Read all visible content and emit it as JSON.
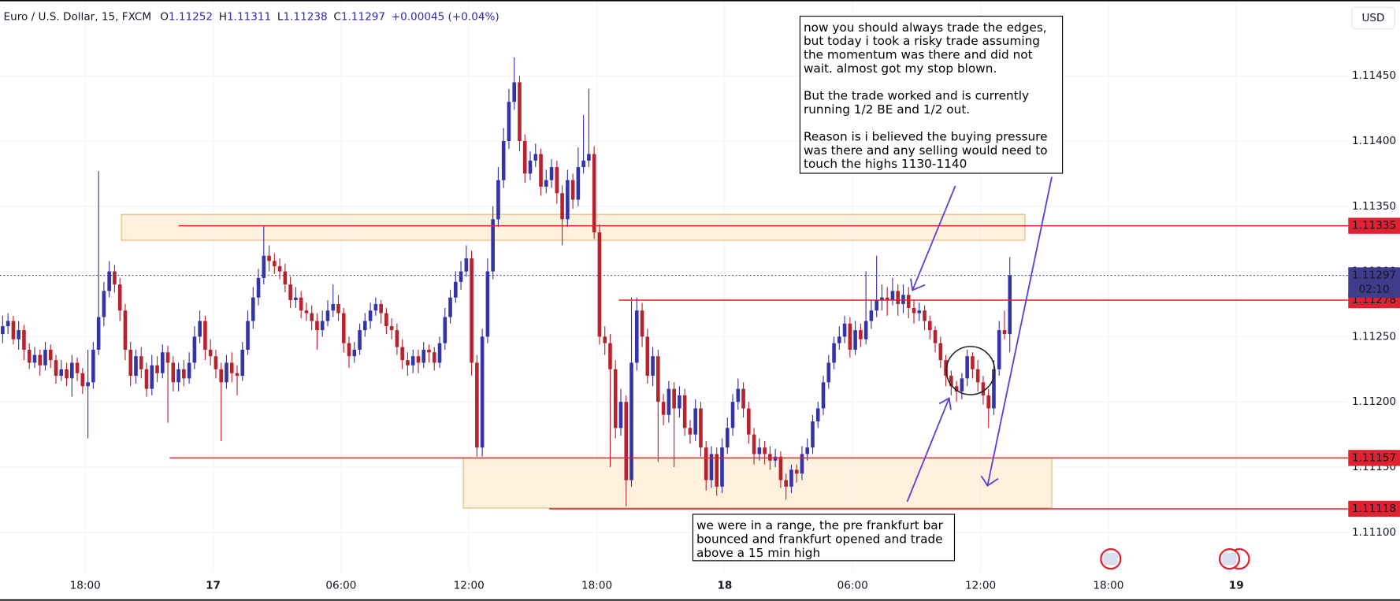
{
  "chart_data": {
    "type": "candlestick",
    "header": {
      "symbol": "Euro / U.S. Dollar, 15, FXCM",
      "open_label": "O",
      "open": 1.11252,
      "high_label": "H",
      "high": 1.11311,
      "low_label": "L",
      "low": 1.11238,
      "close_label": "C",
      "close": 1.11297,
      "change": "+0.00045 (+0.04%)"
    },
    "currency": "USD",
    "colors": {
      "up": "#3434a8",
      "down": "#b8222f",
      "line": "#e0212f",
      "last": "#3d3d8c",
      "grid": "#f0f3fa"
    },
    "grid": true,
    "xlim": [
      0,
      253
    ],
    "xticks": [
      {
        "value": 16,
        "label": "18:00"
      },
      {
        "value": 40,
        "label": "17"
      },
      {
        "value": 64,
        "label": "06:00"
      },
      {
        "value": 88,
        "label": "12:00"
      },
      {
        "value": 112,
        "label": "18:00"
      },
      {
        "value": 136,
        "label": "18"
      },
      {
        "value": 160,
        "label": "06:00"
      },
      {
        "value": 184,
        "label": "12:00"
      },
      {
        "value": 208,
        "label": "18:00"
      },
      {
        "value": 232,
        "label": "19"
      }
    ],
    "ylim": [
      1.1107,
      1.11508
    ],
    "yticks": [
      {
        "value": 1.111,
        "label": "1.11100"
      },
      {
        "value": 1.1115,
        "label": "1.11150"
      },
      {
        "value": 1.112,
        "label": "1.11200"
      },
      {
        "value": 1.1125,
        "label": "1.11250"
      },
      {
        "value": 1.113,
        "label": "1.11300"
      },
      {
        "value": 1.1135,
        "label": "1.11350"
      },
      {
        "value": 1.114,
        "label": "1.11400"
      },
      {
        "value": 1.1145,
        "label": "1.11450"
      }
    ],
    "price_lines": [
      1.11335,
      1.11278,
      1.11157,
      1.11118
    ],
    "last_price": 1.11297,
    "countdown": "02:10",
    "notes": [
      {
        "paragraphs": [
          [
            "now you should always trade the edges,",
            "but today i took a risky trade assuming",
            "the momentum was there and did not",
            "wait. almost got my stop blown."
          ],
          [
            "But the trade worked and is currently",
            "running 1/2 BE and 1/2 out."
          ],
          [
            "Reason is i believed the buying pressure",
            "was there and any selling would need to",
            "touch the highs 1130-1140"
          ]
        ]
      },
      {
        "paragraphs": [
          [
            "we were in a range, the pre frankfurt bar",
            "bounced and frankfurt opened and trade",
            "above a 15 min high"
          ]
        ]
      }
    ],
    "ohlc": [
      [
        1.11252,
        1.11266,
        1.11245,
        1.11258
      ],
      [
        1.11258,
        1.11268,
        1.11252,
        1.11262
      ],
      [
        1.11262,
        1.11266,
        1.11244,
        1.11248
      ],
      [
        1.11248,
        1.11262,
        1.1124,
        1.11255
      ],
      [
        1.11255,
        1.11259,
        1.11232,
        1.1124
      ],
      [
        1.1124,
        1.11245,
        1.11225,
        1.1123
      ],
      [
        1.1123,
        1.11242,
        1.11226,
        1.11236
      ],
      [
        1.11236,
        1.1124,
        1.1122,
        1.11228
      ],
      [
        1.11228,
        1.11246,
        1.11224,
        1.1124
      ],
      [
        1.1124,
        1.11244,
        1.11226,
        1.11232
      ],
      [
        1.11232,
        1.11236,
        1.11214,
        1.1122
      ],
      [
        1.1122,
        1.11232,
        1.11216,
        1.11225
      ],
      [
        1.11225,
        1.1123,
        1.11212,
        1.11218
      ],
      [
        1.11218,
        1.11236,
        1.11204,
        1.1123
      ],
      [
        1.1123,
        1.11234,
        1.11216,
        1.11222
      ],
      [
        1.11222,
        1.11226,
        1.11206,
        1.11212
      ],
      [
        1.11212,
        1.1124,
        1.11172,
        1.11215
      ],
      [
        1.11215,
        1.11246,
        1.1121,
        1.1124
      ],
      [
        1.1124,
        1.11377,
        1.11236,
        1.11265
      ],
      [
        1.11265,
        1.11292,
        1.11258,
        1.11285
      ],
      [
        1.11285,
        1.11308,
        1.1128,
        1.113
      ],
      [
        1.113,
        1.11305,
        1.11284,
        1.1129
      ],
      [
        1.1129,
        1.11295,
        1.11262,
        1.1127
      ],
      [
        1.1127,
        1.11275,
        1.11232,
        1.1124
      ],
      [
        1.1124,
        1.11246,
        1.11212,
        1.1122
      ],
      [
        1.1122,
        1.1124,
        1.11214,
        1.11235
      ],
      [
        1.11235,
        1.11242,
        1.11218,
        1.11225
      ],
      [
        1.11225,
        1.1123,
        1.11204,
        1.1121
      ],
      [
        1.1121,
        1.11236,
        1.11205,
        1.11228
      ],
      [
        1.11228,
        1.11235,
        1.11215,
        1.11222
      ],
      [
        1.11222,
        1.11244,
        1.11218,
        1.11238
      ],
      [
        1.11238,
        1.11243,
        1.11184,
        1.1123
      ],
      [
        1.1123,
        1.11235,
        1.11208,
        1.11215
      ],
      [
        1.11215,
        1.1123,
        1.11208,
        1.11225
      ],
      [
        1.11225,
        1.11232,
        1.11212,
        1.11218
      ],
      [
        1.11218,
        1.11238,
        1.11214,
        1.1123
      ],
      [
        1.1123,
        1.11258,
        1.11225,
        1.1125
      ],
      [
        1.1125,
        1.1127,
        1.11245,
        1.11262
      ],
      [
        1.11262,
        1.11266,
        1.11232,
        1.1124
      ],
      [
        1.1124,
        1.11248,
        1.11228,
        1.11235
      ],
      [
        1.11235,
        1.1124,
        1.11218,
        1.11225
      ],
      [
        1.11225,
        1.1123,
        1.1117,
        1.11215
      ],
      [
        1.11215,
        1.11236,
        1.1121,
        1.1123
      ],
      [
        1.1123,
        1.11238,
        1.11215,
        1.11222
      ],
      [
        1.11222,
        1.11228,
        1.11205,
        1.1122
      ],
      [
        1.1122,
        1.11246,
        1.11216,
        1.1124
      ],
      [
        1.1124,
        1.1127,
        1.11236,
        1.11262
      ],
      [
        1.11262,
        1.11288,
        1.11256,
        1.1128
      ],
      [
        1.1128,
        1.11302,
        1.11274,
        1.11295
      ],
      [
        1.11295,
        1.11335,
        1.1129,
        1.11312
      ],
      [
        1.11312,
        1.1132,
        1.113,
        1.11308
      ],
      [
        1.11308,
        1.11314,
        1.11298,
        1.11304
      ],
      [
        1.11304,
        1.1131,
        1.11294,
        1.113
      ],
      [
        1.113,
        1.11306,
        1.11284,
        1.1129
      ],
      [
        1.1129,
        1.11296,
        1.11272,
        1.11278
      ],
      [
        1.11278,
        1.11288,
        1.11272,
        1.1128
      ],
      [
        1.1128,
        1.11285,
        1.11264,
        1.1127
      ],
      [
        1.1127,
        1.11276,
        1.11262,
        1.11268
      ],
      [
        1.11268,
        1.11274,
        1.11255,
        1.11262
      ],
      [
        1.11262,
        1.11268,
        1.1124,
        1.11255
      ],
      [
        1.11255,
        1.1127,
        1.1125,
        1.11262
      ],
      [
        1.11262,
        1.11278,
        1.11258,
        1.1127
      ],
      [
        1.1127,
        1.1129,
        1.11265,
        1.11275
      ],
      [
        1.11275,
        1.11282,
        1.11262,
        1.11268
      ],
      [
        1.11268,
        1.11272,
        1.11238,
        1.11245
      ],
      [
        1.11245,
        1.1125,
        1.11226,
        1.11235
      ],
      [
        1.11235,
        1.11246,
        1.1123,
        1.1124
      ],
      [
        1.1124,
        1.1126,
        1.11236,
        1.11255
      ],
      [
        1.11255,
        1.11268,
        1.1125,
        1.11262
      ],
      [
        1.11262,
        1.11276,
        1.11256,
        1.1127
      ],
      [
        1.1127,
        1.1128,
        1.11266,
        1.11275
      ],
      [
        1.11275,
        1.11278,
        1.1126,
        1.11268
      ],
      [
        1.11268,
        1.11272,
        1.11252,
        1.11258
      ],
      [
        1.11258,
        1.11264,
        1.11248,
        1.11255
      ],
      [
        1.11255,
        1.1126,
        1.11236,
        1.11242
      ],
      [
        1.11242,
        1.11248,
        1.11225,
        1.11232
      ],
      [
        1.11232,
        1.11238,
        1.1122,
        1.11228
      ],
      [
        1.11228,
        1.1124,
        1.11222,
        1.11235
      ],
      [
        1.11235,
        1.1124,
        1.11222,
        1.1123
      ],
      [
        1.1123,
        1.11246,
        1.11226,
        1.1124
      ],
      [
        1.1124,
        1.11244,
        1.1123,
        1.11238
      ],
      [
        1.11238,
        1.11242,
        1.11224,
        1.1123
      ],
      [
        1.1123,
        1.1125,
        1.11226,
        1.11245
      ],
      [
        1.11245,
        1.11272,
        1.1124,
        1.11265
      ],
      [
        1.11265,
        1.11286,
        1.1126,
        1.1128
      ],
      [
        1.1128,
        1.113,
        1.11276,
        1.11292
      ],
      [
        1.11292,
        1.11308,
        1.11286,
        1.113
      ],
      [
        1.113,
        1.1132,
        1.11296,
        1.1131
      ],
      [
        1.1131,
        1.11316,
        1.1122,
        1.1123
      ],
      [
        1.1123,
        1.11236,
        1.11158,
        1.11165
      ],
      [
        1.11165,
        1.11256,
        1.11158,
        1.1125
      ],
      [
        1.1125,
        1.1131,
        1.11245,
        1.113
      ],
      [
        1.113,
        1.1135,
        1.11294,
        1.1134
      ],
      [
        1.1134,
        1.1138,
        1.11334,
        1.1137
      ],
      [
        1.1137,
        1.1141,
        1.11364,
        1.114
      ],
      [
        1.114,
        1.1144,
        1.11394,
        1.1143
      ],
      [
        1.1143,
        1.11464,
        1.11424,
        1.11445
      ],
      [
        1.11445,
        1.1145,
        1.11392,
        1.114
      ],
      [
        1.114,
        1.11405,
        1.11368,
        1.11375
      ],
      [
        1.11375,
        1.11392,
        1.1137,
        1.11385
      ],
      [
        1.11385,
        1.11398,
        1.1138,
        1.1139
      ],
      [
        1.1139,
        1.11394,
        1.11358,
        1.11365
      ],
      [
        1.11365,
        1.11378,
        1.1136,
        1.1137
      ],
      [
        1.1137,
        1.11386,
        1.11364,
        1.1138
      ],
      [
        1.1138,
        1.11385,
        1.11352,
        1.1136
      ],
      [
        1.1136,
        1.11366,
        1.1132,
        1.1134
      ],
      [
        1.1134,
        1.11378,
        1.11334,
        1.1137
      ],
      [
        1.1137,
        1.11375,
        1.11348,
        1.11355
      ],
      [
        1.11355,
        1.11395,
        1.1135,
        1.1138
      ],
      [
        1.1138,
        1.1142,
        1.11375,
        1.11385
      ],
      [
        1.11385,
        1.1144,
        1.1138,
        1.1139
      ],
      [
        1.1139,
        1.11396,
        1.11325,
        1.1133
      ],
      [
        1.1133,
        1.11336,
        1.11244,
        1.1125
      ],
      [
        1.1125,
        1.11258,
        1.11236,
        1.11245
      ],
      [
        1.11245,
        1.11252,
        1.1115,
        1.11225
      ],
      [
        1.11225,
        1.11232,
        1.11172,
        1.1118
      ],
      [
        1.1118,
        1.1121,
        1.11174,
        1.112
      ],
      [
        1.112,
        1.11205,
        1.1112,
        1.1114
      ],
      [
        1.1114,
        1.1128,
        1.11135,
        1.1123
      ],
      [
        1.1123,
        1.1128,
        1.11224,
        1.1127
      ],
      [
        1.1127,
        1.11276,
        1.11242,
        1.1125
      ],
      [
        1.1125,
        1.11256,
        1.11214,
        1.1122
      ],
      [
        1.1122,
        1.11242,
        1.11212,
        1.11235
      ],
      [
        1.11235,
        1.1124,
        1.11154,
        1.112
      ],
      [
        1.112,
        1.11206,
        1.11182,
        1.1119
      ],
      [
        1.1119,
        1.11216,
        1.11184,
        1.1121
      ],
      [
        1.1121,
        1.11215,
        1.1115,
        1.11195
      ],
      [
        1.11195,
        1.11212,
        1.11188,
        1.11205
      ],
      [
        1.11205,
        1.1121,
        1.11174,
        1.1118
      ],
      [
        1.1118,
        1.11186,
        1.11168,
        1.11175
      ],
      [
        1.11175,
        1.11202,
        1.1117,
        1.11195
      ],
      [
        1.11195,
        1.112,
        1.11158,
        1.11165
      ],
      [
        1.11165,
        1.1117,
        1.11132,
        1.1114
      ],
      [
        1.1114,
        1.11166,
        1.11134,
        1.1116
      ],
      [
        1.1116,
        1.11165,
        1.11128,
        1.11135
      ],
      [
        1.11135,
        1.11172,
        1.1113,
        1.11165
      ],
      [
        1.11165,
        1.11188,
        1.1116,
        1.1118
      ],
      [
        1.1118,
        1.11206,
        1.11174,
        1.112
      ],
      [
        1.112,
        1.11218,
        1.11194,
        1.1121
      ],
      [
        1.1121,
        1.11215,
        1.11188,
        1.11195
      ],
      [
        1.11195,
        1.112,
        1.11168,
        1.11175
      ],
      [
        1.11175,
        1.1118,
        1.11152,
        1.1116
      ],
      [
        1.1116,
        1.11172,
        1.11155,
        1.11165
      ],
      [
        1.11165,
        1.1117,
        1.11152,
        1.1116
      ],
      [
        1.1116,
        1.11166,
        1.11148,
        1.11155
      ],
      [
        1.11155,
        1.11164,
        1.1115,
        1.11158
      ],
      [
        1.11158,
        1.11162,
        1.11134,
        1.1114
      ],
      [
        1.1114,
        1.11145,
        1.11125,
        1.11135
      ],
      [
        1.11135,
        1.11152,
        1.1113,
        1.11148
      ],
      [
        1.11148,
        1.11152,
        1.11138,
        1.11145
      ],
      [
        1.11145,
        1.11166,
        1.1114,
        1.1116
      ],
      [
        1.1116,
        1.11172,
        1.11155,
        1.11165
      ],
      [
        1.11165,
        1.1119,
        1.1116,
        1.11185
      ],
      [
        1.11185,
        1.112,
        1.1118,
        1.11195
      ],
      [
        1.11195,
        1.1122,
        1.1119,
        1.11215
      ],
      [
        1.11215,
        1.11236,
        1.1121,
        1.1123
      ],
      [
        1.1123,
        1.1125,
        1.11225,
        1.11245
      ],
      [
        1.11245,
        1.11258,
        1.1124,
        1.1125
      ],
      [
        1.1125,
        1.11266,
        1.11245,
        1.1126
      ],
      [
        1.1126,
        1.11265,
        1.11234,
        1.1124
      ],
      [
        1.1124,
        1.11262,
        1.11236,
        1.11255
      ],
      [
        1.11255,
        1.1126,
        1.11242,
        1.11248
      ],
      [
        1.11248,
        1.113,
        1.11244,
        1.11262
      ],
      [
        1.11262,
        1.11278,
        1.11256,
        1.1127
      ],
      [
        1.1127,
        1.11312,
        1.11265,
        1.11278
      ],
      [
        1.11278,
        1.1129,
        1.1127,
        1.1128
      ],
      [
        1.1128,
        1.11288,
        1.11266,
        1.11278
      ],
      [
        1.11278,
        1.11295,
        1.11274,
        1.11285
      ],
      [
        1.11285,
        1.1129,
        1.11266,
        1.11275
      ],
      [
        1.11275,
        1.1129,
        1.11268,
        1.11282
      ],
      [
        1.11282,
        1.11288,
        1.11264,
        1.11272
      ],
      [
        1.11272,
        1.11278,
        1.1126,
        1.11268
      ],
      [
        1.11268,
        1.11276,
        1.11262,
        1.1127
      ],
      [
        1.1127,
        1.11274,
        1.11255,
        1.11262
      ],
      [
        1.11262,
        1.11266,
        1.11248,
        1.11255
      ],
      [
        1.11255,
        1.11258,
        1.11238,
        1.11245
      ],
      [
        1.11245,
        1.1125,
        1.11226,
        1.11232
      ],
      [
        1.11232,
        1.11236,
        1.11212,
        1.1122
      ],
      [
        1.1122,
        1.11224,
        1.11205,
        1.11212
      ],
      [
        1.11212,
        1.11216,
        1.112,
        1.11208
      ],
      [
        1.11208,
        1.11222,
        1.11202,
        1.11218
      ],
      [
        1.11218,
        1.1124,
        1.11212,
        1.11235
      ],
      [
        1.11235,
        1.11238,
        1.11218,
        1.11225
      ],
      [
        1.11225,
        1.11232,
        1.11208,
        1.11215
      ],
      [
        1.11215,
        1.1122,
        1.11198,
        1.11205
      ],
      [
        1.11205,
        1.1121,
        1.1118,
        1.11195
      ],
      [
        1.11195,
        1.11232,
        1.1119,
        1.11225
      ],
      [
        1.11225,
        1.11262,
        1.1122,
        1.11255
      ],
      [
        1.11255,
        1.1127,
        1.11248,
        1.11252
      ],
      [
        1.11252,
        1.11311,
        1.11238,
        1.11297
      ]
    ]
  }
}
